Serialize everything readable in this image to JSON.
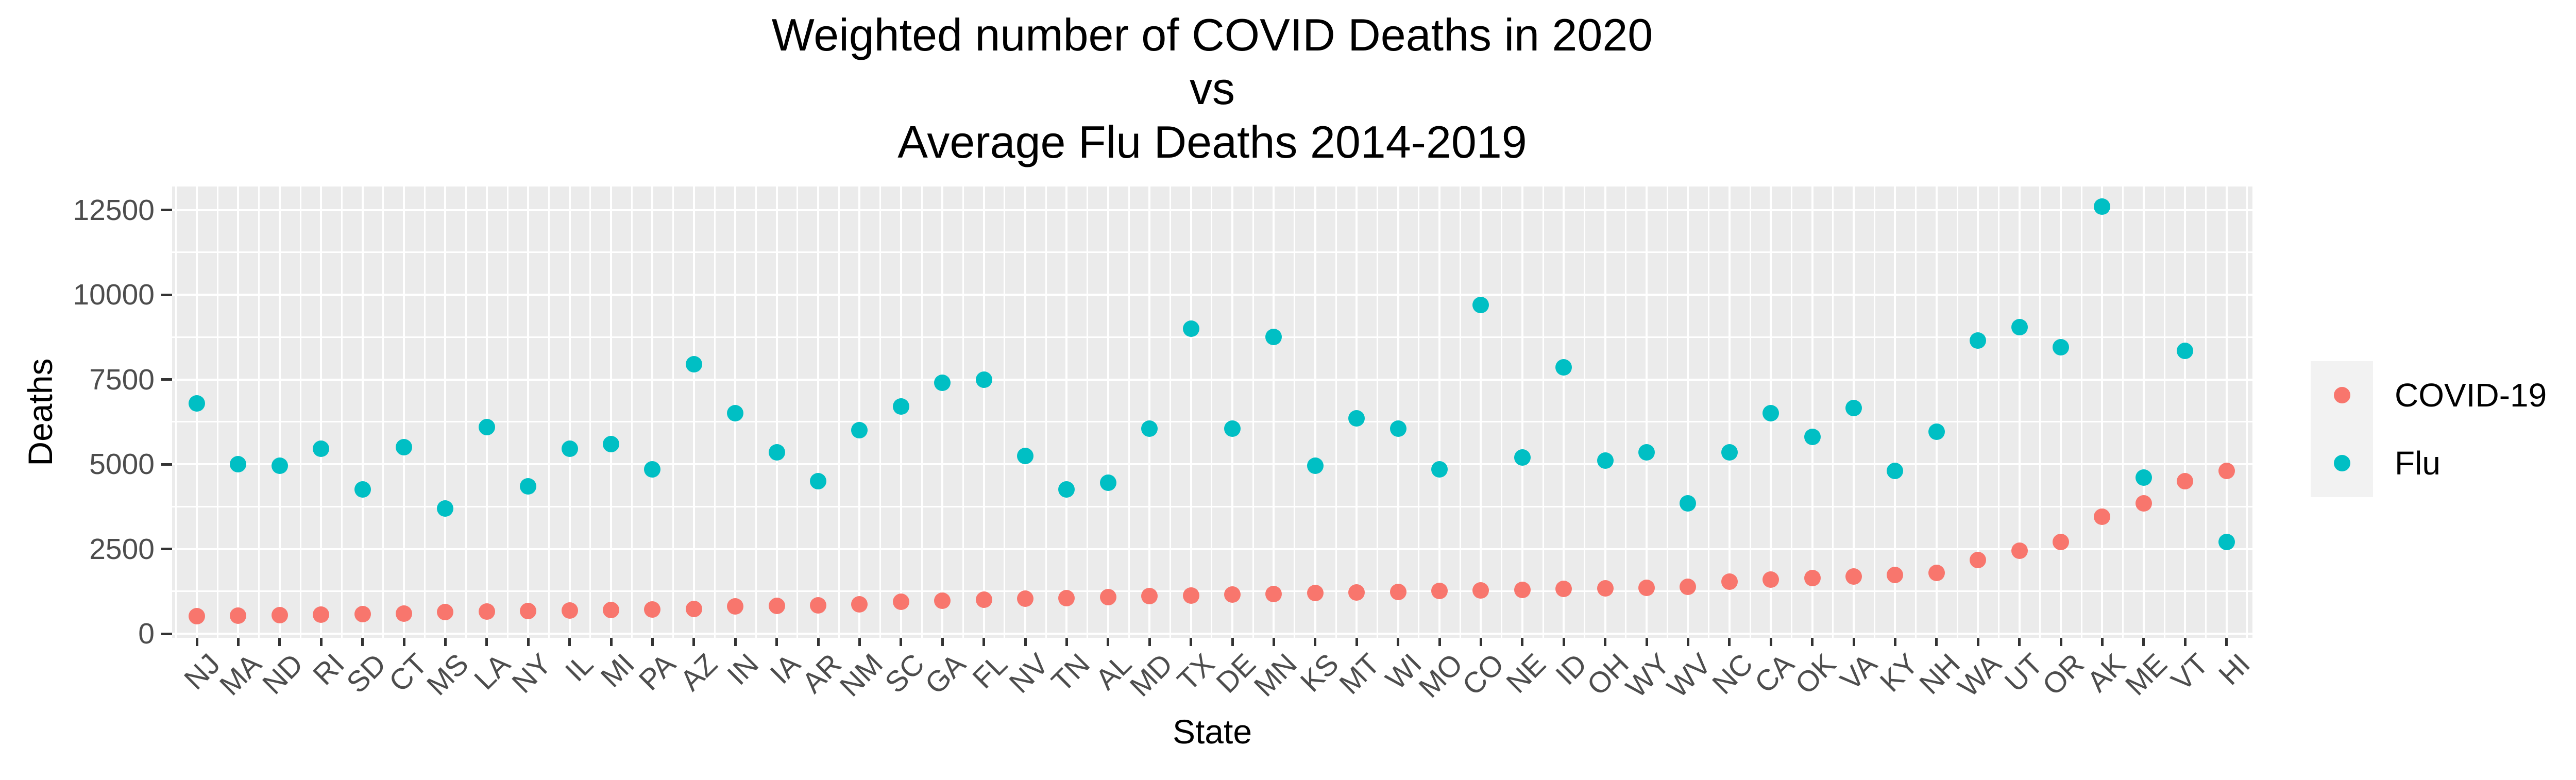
{
  "title": {
    "line1": "Weighted number of COVID Deaths in 2020",
    "line2": "vs",
    "line3": "Average Flu Deaths 2014-2019"
  },
  "axes": {
    "y_title": "Deaths",
    "x_title": "State",
    "y_tick_labels": [
      "0",
      "2500",
      "5000",
      "7500",
      "10000",
      "12500"
    ],
    "y_tick_values": [
      0,
      2500,
      5000,
      7500,
      10000,
      12500
    ],
    "y_minor_values": [
      1250,
      3750,
      6250,
      8750,
      11250
    ]
  },
  "legend": {
    "items": [
      {
        "label": "COVID-19",
        "color": "#F8766D"
      },
      {
        "label": "Flu",
        "color": "#00BFC4"
      }
    ]
  },
  "colors": {
    "covid": "#F8766D",
    "flu": "#00BFC4",
    "panel_background": "#EBEBEB",
    "gridline": "#FFFFFF",
    "tick_text": "#4D4D4D",
    "title_text": "#000000",
    "legend_key_background": "#F2F2F2"
  },
  "chart_data": {
    "type": "scatter",
    "title": "Weighted number of COVID Deaths in 2020 vs Average Flu Deaths 2014-2019",
    "xlabel": "State",
    "ylabel": "Deaths",
    "ylim": [
      -85,
      13300
    ],
    "grid": true,
    "legend_position": "right",
    "categories": [
      "NJ",
      "MA",
      "ND",
      "RI",
      "SD",
      "CT",
      "MS",
      "LA",
      "NY",
      "IL",
      "MI",
      "PA",
      "AZ",
      "IN",
      "IA",
      "AR",
      "NM",
      "SC",
      "GA",
      "FL",
      "NV",
      "TN",
      "AL",
      "MD",
      "TX",
      "DE",
      "MN",
      "KS",
      "MT",
      "WI",
      "MO",
      "CO",
      "NE",
      "ID",
      "OH",
      "WY",
      "WV",
      "NC",
      "CA",
      "OK",
      "VA",
      "KY",
      "NH",
      "WA",
      "UT",
      "OR",
      "AK",
      "ME",
      "VT",
      "HI"
    ],
    "series": [
      {
        "name": "COVID-19",
        "color": "#F8766D",
        "values": [
          520,
          535,
          550,
          560,
          575,
          590,
          645,
          660,
          675,
          690,
          700,
          715,
          730,
          805,
          820,
          840,
          865,
          940,
          970,
          1000,
          1030,
          1055,
          1080,
          1105,
          1130,
          1155,
          1175,
          1195,
          1215,
          1235,
          1255,
          1275,
          1295,
          1315,
          1335,
          1360,
          1390,
          1540,
          1590,
          1640,
          1690,
          1740,
          1800,
          2180,
          2450,
          2700,
          3450,
          3850,
          4500,
          4800
        ]
      },
      {
        "name": "Flu",
        "color": "#00BFC4",
        "values": [
          6800,
          5000,
          4950,
          5450,
          4250,
          5500,
          3700,
          6100,
          4350,
          5450,
          5600,
          4850,
          7950,
          6500,
          5350,
          4500,
          6000,
          6700,
          7400,
          7500,
          5250,
          4250,
          4450,
          6050,
          9000,
          6050,
          8750,
          4950,
          6350,
          6050,
          4850,
          9700,
          5200,
          7850,
          5100,
          5350,
          3850,
          5350,
          6500,
          5800,
          6650,
          4800,
          5950,
          8650,
          9050,
          8450,
          12600,
          4600,
          8350,
          2700
        ]
      }
    ]
  }
}
